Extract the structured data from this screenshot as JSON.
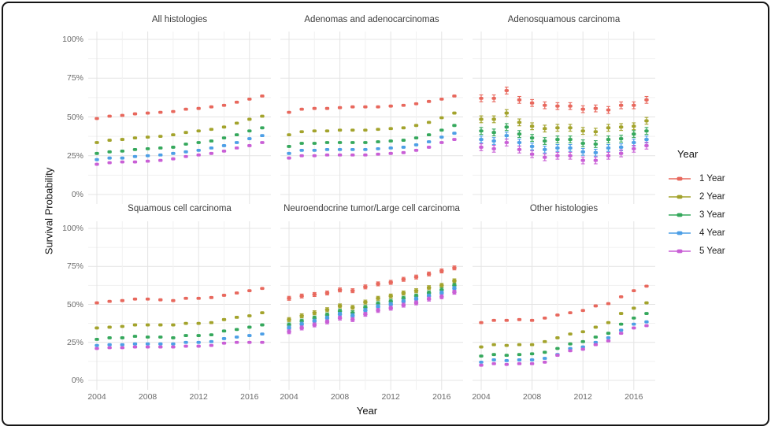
{
  "figure": {
    "y_axis_title": "Survival Probability",
    "x_axis_title": "Year",
    "y_tick_labels": [
      "100%",
      "75%",
      "50%",
      "25%",
      "0%"
    ],
    "x_tick_labels": [
      "2004",
      "2008",
      "2012",
      "2016"
    ],
    "legend": {
      "title": "Year",
      "items": [
        {
          "label": "1 Year",
          "color": "#e8685d"
        },
        {
          "label": "2 Year",
          "color": "#a3a32c"
        },
        {
          "label": "3 Year",
          "color": "#35a85c"
        },
        {
          "label": "4 Year",
          "color": "#4d9fe6"
        },
        {
          "label": "5 Year",
          "color": "#c95fd6"
        }
      ]
    }
  },
  "chart_data": {
    "type": "scatter",
    "title": "",
    "xlabel": "Year",
    "ylabel": "Survival Probability",
    "x": [
      2004,
      2005,
      2006,
      2007,
      2008,
      2009,
      2010,
      2011,
      2012,
      2013,
      2014,
      2015,
      2016,
      2017
    ],
    "x_tick_years": [
      2004,
      2008,
      2012,
      2016
    ],
    "ylim": [
      0,
      100
    ],
    "y_major_ticks_pct": [
      0,
      25,
      50,
      75,
      100
    ],
    "legend_position": "right",
    "grid": "on",
    "series_names": [
      "1 Year",
      "2 Year",
      "3 Year",
      "4 Year",
      "5 Year"
    ],
    "series_colors": [
      "#e8685d",
      "#a3a32c",
      "#35a85c",
      "#4d9fe6",
      "#c95fd6"
    ],
    "facets": [
      {
        "title": "All histologies",
        "row": 0,
        "col": 0,
        "err_pct": 0,
        "series": [
          [
            49,
            50.5,
            51,
            52,
            52.5,
            53,
            53.5,
            55,
            55.5,
            56.5,
            57.5,
            59.5,
            61.5,
            63.5
          ],
          [
            33.5,
            35,
            35.5,
            36.5,
            37,
            37.5,
            38.5,
            40,
            41,
            42,
            43.5,
            46,
            48.5,
            50.5
          ],
          [
            26.5,
            27.5,
            28,
            29,
            29.5,
            30,
            30.5,
            32.5,
            33.5,
            34.5,
            36.5,
            38.5,
            41,
            43
          ],
          [
            22.5,
            23.5,
            23.5,
            24.5,
            25,
            25.5,
            26.5,
            27.5,
            28.5,
            30,
            31.5,
            33.5,
            36,
            38
          ],
          [
            19.5,
            20.5,
            21,
            21,
            21.5,
            22,
            23,
            24.5,
            25.5,
            26.5,
            28,
            30,
            31.5,
            33.5
          ]
        ]
      },
      {
        "title": "Adenomas and adenocarcinomas",
        "row": 0,
        "col": 1,
        "err_pct": 0,
        "series": [
          [
            53,
            55,
            55.5,
            55.5,
            56,
            56.5,
            56.5,
            56.5,
            57,
            57.5,
            58.5,
            60,
            61.5,
            63.5
          ],
          [
            38.5,
            40.5,
            41,
            41,
            41.5,
            41.5,
            41.5,
            42,
            42.5,
            43,
            44.5,
            46.5,
            49.5,
            52.5
          ],
          [
            31,
            33,
            33,
            33.5,
            33.5,
            33.5,
            33.5,
            34,
            34.5,
            35,
            36.5,
            38.5,
            41.5,
            44.5
          ],
          [
            26.5,
            28.5,
            28.5,
            29,
            29,
            29,
            29,
            29.5,
            30,
            30.5,
            32,
            34,
            37,
            39.5
          ],
          [
            23.5,
            25,
            25,
            25.5,
            25.5,
            25.5,
            25.5,
            26,
            26.5,
            27,
            28.5,
            30.5,
            33.5,
            35.5
          ]
        ]
      },
      {
        "title": "Adenosquamous carcinoma",
        "row": 0,
        "col": 2,
        "err_pct": 2.2,
        "series": [
          [
            62,
            62,
            67,
            61,
            59,
            57.5,
            57,
            57,
            55,
            55.5,
            54.5,
            57.5,
            57.5,
            61
          ],
          [
            48.5,
            48.5,
            52.5,
            46.5,
            44,
            42.5,
            43,
            43,
            41,
            40.5,
            43,
            43.5,
            44,
            47.5
          ],
          [
            41,
            40,
            43.5,
            39,
            36.5,
            34.5,
            35.5,
            35.5,
            33,
            32.5,
            35.5,
            36,
            39,
            41
          ],
          [
            35.5,
            34.5,
            38,
            33.5,
            31,
            29,
            30,
            30,
            27.5,
            27,
            30,
            30.5,
            33.5,
            35.5
          ],
          [
            30.5,
            29.5,
            33.5,
            29,
            26,
            24,
            25,
            25,
            22,
            22,
            25,
            26.5,
            29.5,
            31.5
          ]
        ]
      },
      {
        "title": "Squamous cell carcinoma",
        "row": 1,
        "col": 0,
        "err_pct": 0,
        "series": [
          [
            51,
            52,
            52.5,
            53.5,
            53.5,
            53,
            52.5,
            54,
            54,
            54.5,
            56,
            57.5,
            59,
            60.5
          ],
          [
            34.5,
            35,
            35.5,
            36.5,
            36.5,
            36.5,
            36.5,
            37.5,
            37.5,
            38,
            40,
            41.5,
            42.5,
            44.5
          ],
          [
            27,
            28,
            28,
            29,
            28.5,
            28.5,
            28,
            29.5,
            29.5,
            30,
            32.5,
            33.5,
            35,
            36.5
          ],
          [
            23,
            23.5,
            23.5,
            24,
            24,
            24,
            24,
            25,
            25,
            25.5,
            27.5,
            28.5,
            29.5,
            30.5
          ],
          [
            21,
            21.5,
            21.5,
            22,
            22,
            22,
            22,
            22.5,
            22.5,
            23,
            24.5,
            25,
            25,
            25
          ]
        ]
      },
      {
        "title": "Neuroendocrine tumor/Large cell carcinoma",
        "row": 1,
        "col": 1,
        "err_pct": 1.3,
        "series": [
          [
            54,
            55.5,
            56.5,
            57.5,
            59.5,
            59,
            61.5,
            63.5,
            64.5,
            66.5,
            68,
            70,
            72,
            74
          ],
          [
            40,
            42.5,
            44.5,
            46.5,
            49,
            48,
            51.5,
            54,
            55.5,
            57.5,
            59,
            61,
            62.5,
            65.5
          ],
          [
            36.5,
            39,
            41,
            43,
            45.5,
            44.5,
            48,
            50.5,
            52,
            54,
            55.5,
            57.5,
            59.5,
            62.5
          ],
          [
            34.5,
            37,
            39,
            41,
            43.5,
            42.5,
            46,
            48.5,
            50,
            52,
            53.5,
            55.5,
            57.5,
            60.5
          ],
          [
            32,
            34.5,
            36.5,
            38.5,
            41,
            40,
            43.5,
            46,
            47.5,
            49.5,
            51,
            53.5,
            55,
            58
          ]
        ]
      },
      {
        "title": "Other histologies",
        "row": 1,
        "col": 2,
        "err_pct": 0,
        "series": [
          [
            38,
            39.5,
            39.5,
            40,
            39.5,
            41,
            43,
            44.5,
            46,
            49,
            50.5,
            55,
            59,
            62
          ],
          [
            22,
            23.5,
            23,
            23.5,
            23.5,
            25.5,
            28,
            30.5,
            32,
            35,
            38,
            44,
            47.5,
            51
          ],
          [
            16,
            17,
            16.5,
            17,
            17.5,
            18.5,
            21,
            24,
            25.5,
            28.5,
            31,
            37,
            41,
            44
          ],
          [
            12,
            13.5,
            13,
            13.5,
            13.5,
            14.5,
            17,
            21,
            22,
            25,
            28,
            33,
            37,
            38.5
          ],
          [
            10,
            11,
            10.5,
            11,
            11,
            12,
            16.5,
            19.5,
            20.5,
            23.5,
            26,
            31,
            34.5,
            36
          ]
        ]
      }
    ]
  }
}
